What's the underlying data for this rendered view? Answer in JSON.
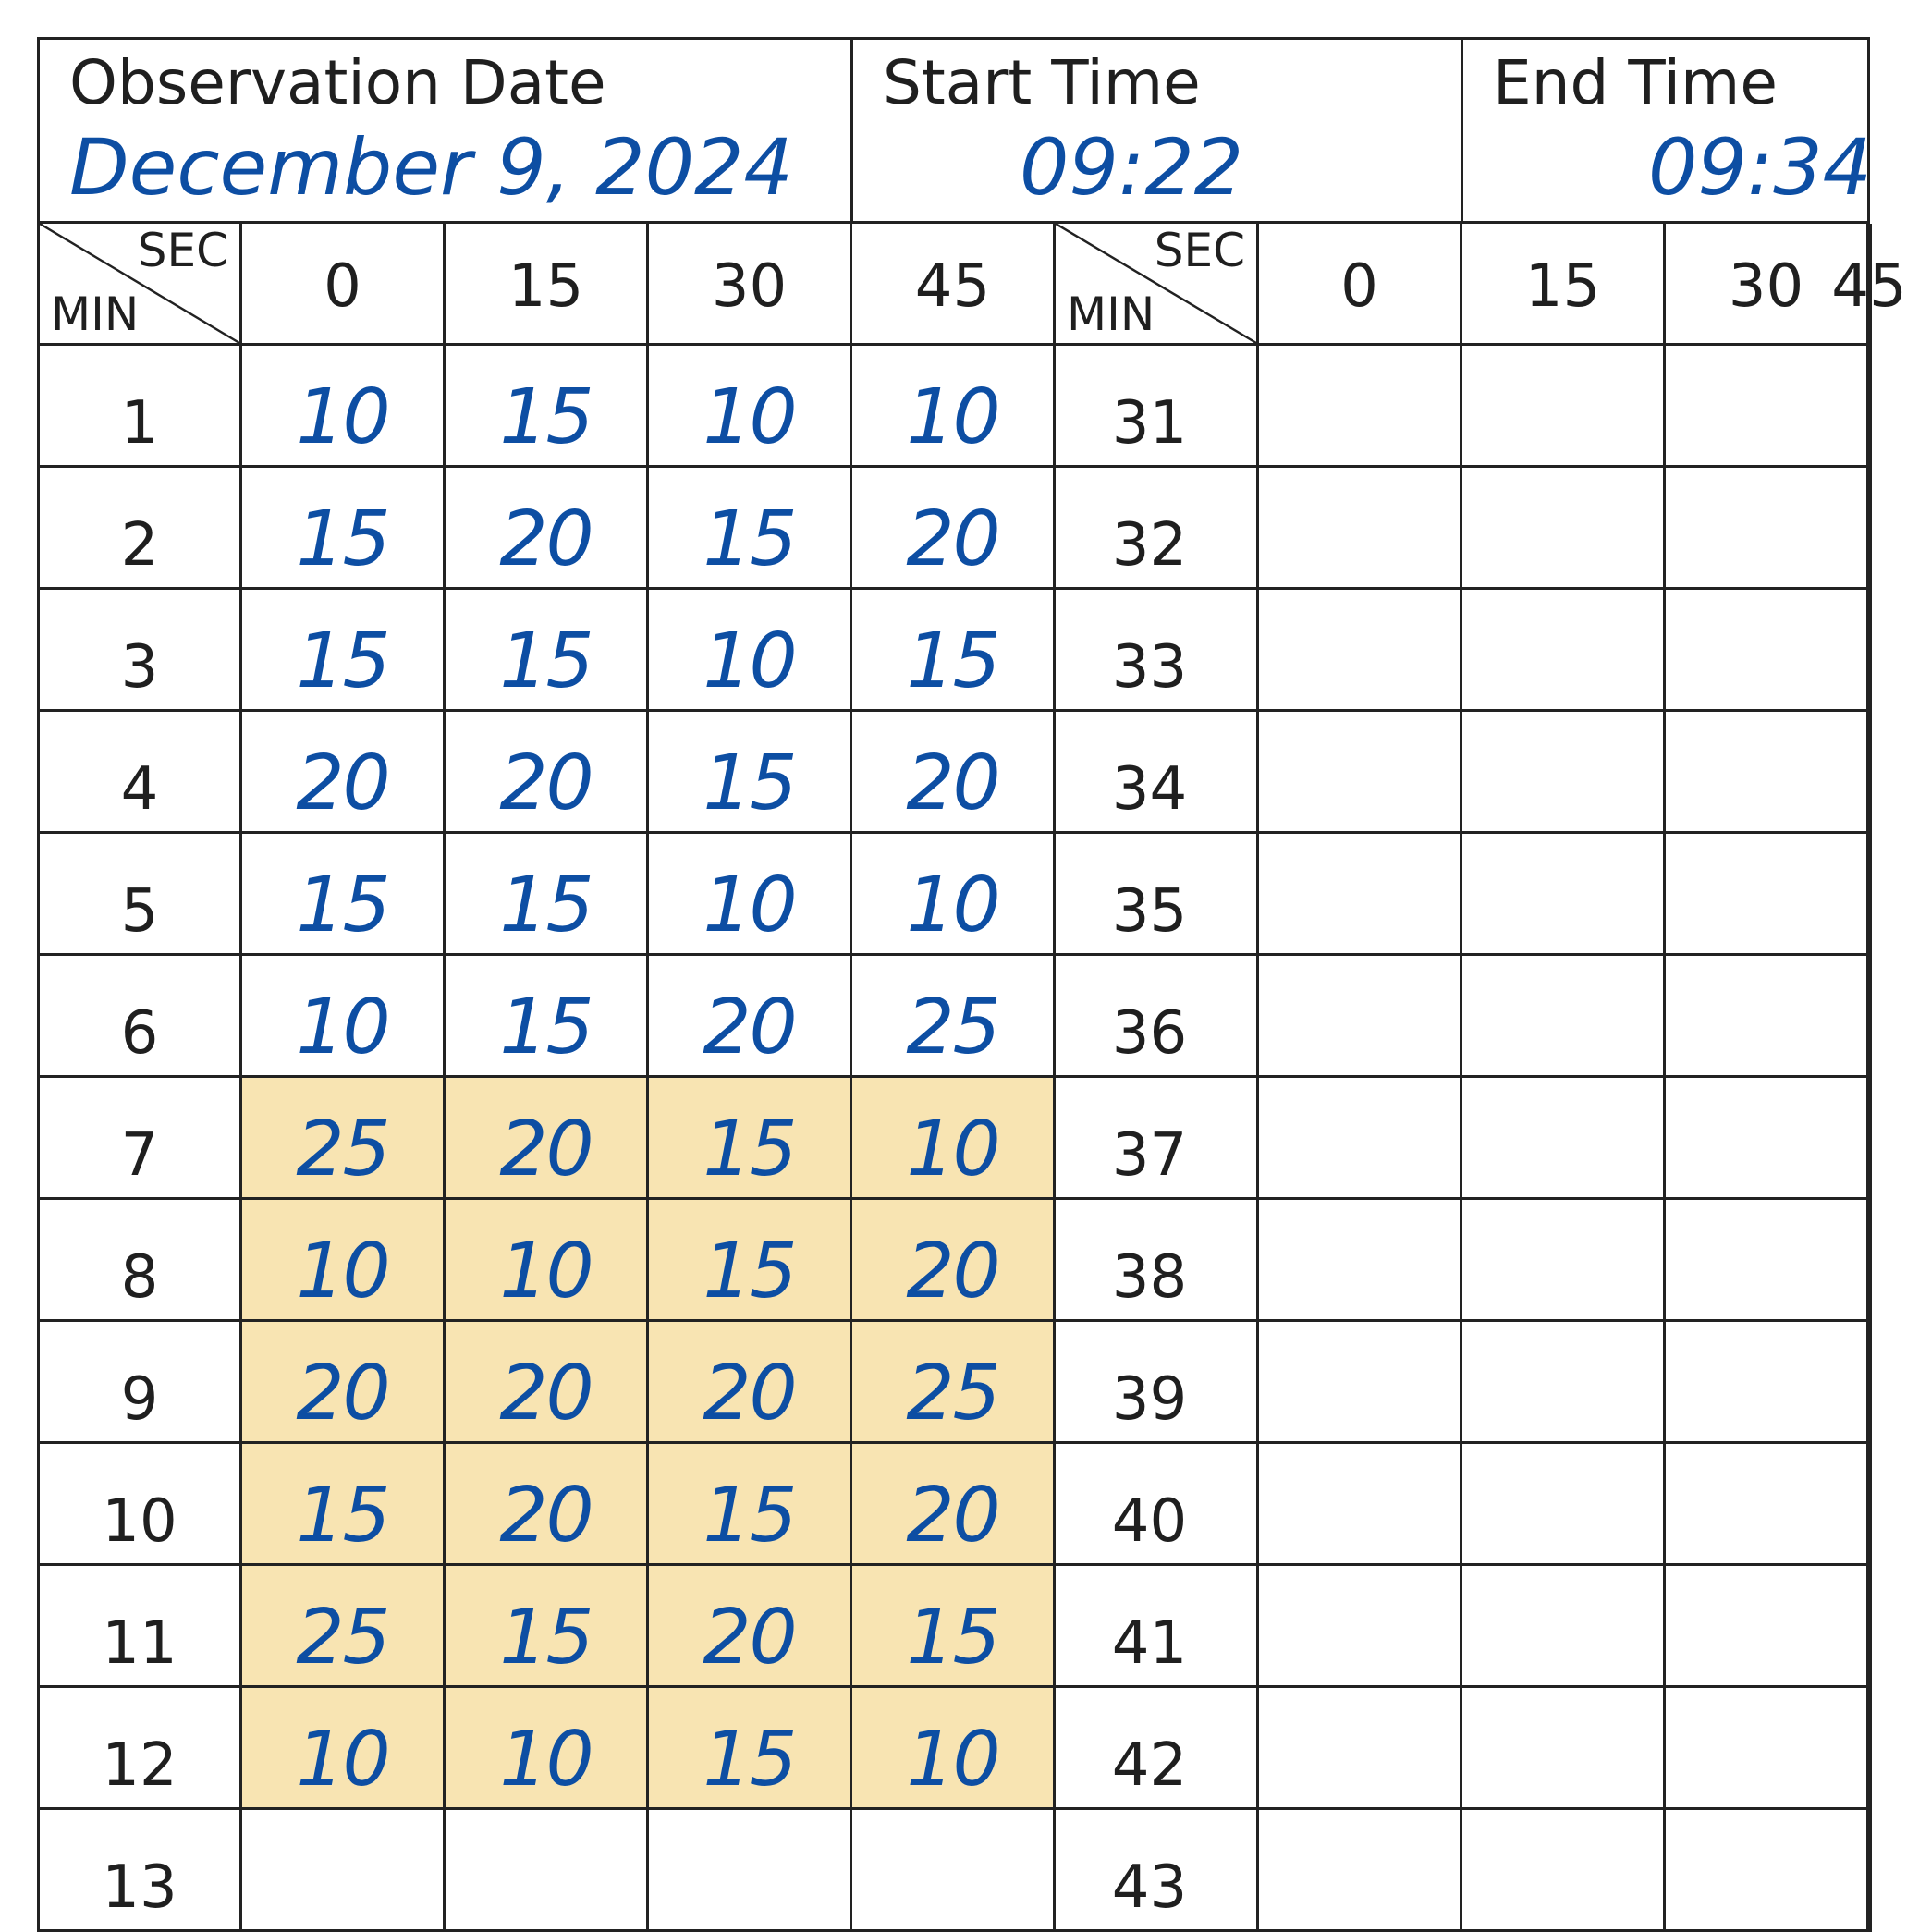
{
  "header": {
    "date_label": "Observation Date",
    "date_value": "December 9, 2024",
    "start_label": "Start Time",
    "start_value": "09:22",
    "end_label": "End Time",
    "end_value": "09:34"
  },
  "corner": {
    "sec_label": "SEC",
    "min_label": "MIN"
  },
  "seconds": [
    "0",
    "15",
    "30",
    "45"
  ],
  "left_minutes": [
    "1",
    "2",
    "3",
    "4",
    "5",
    "6",
    "7",
    "8",
    "9",
    "10",
    "11",
    "12",
    "13"
  ],
  "right_minutes": [
    "31",
    "32",
    "33",
    "34",
    "35",
    "36",
    "37",
    "38",
    "39",
    "40",
    "41",
    "42",
    "43"
  ],
  "observations": [
    [
      "10",
      "15",
      "10",
      "10"
    ],
    [
      "15",
      "20",
      "15",
      "20"
    ],
    [
      "15",
      "15",
      "10",
      "15"
    ],
    [
      "20",
      "20",
      "15",
      "20"
    ],
    [
      "15",
      "15",
      "10",
      "10"
    ],
    [
      "10",
      "15",
      "20",
      "25"
    ],
    [
      "25",
      "20",
      "15",
      "10"
    ],
    [
      "10",
      "10",
      "15",
      "20"
    ],
    [
      "20",
      "20",
      "20",
      "25"
    ],
    [
      "15",
      "20",
      "15",
      "20"
    ],
    [
      "25",
      "15",
      "20",
      "15"
    ],
    [
      "10",
      "10",
      "15",
      "10"
    ],
    [
      "",
      "",
      "",
      ""
    ]
  ],
  "highlighted_minutes": [
    "7",
    "8",
    "9",
    "10",
    "11",
    "12"
  ],
  "colors": {
    "ink": "#0d4ea3",
    "highlight": "#f8e4b2",
    "grid": "#222222"
  }
}
